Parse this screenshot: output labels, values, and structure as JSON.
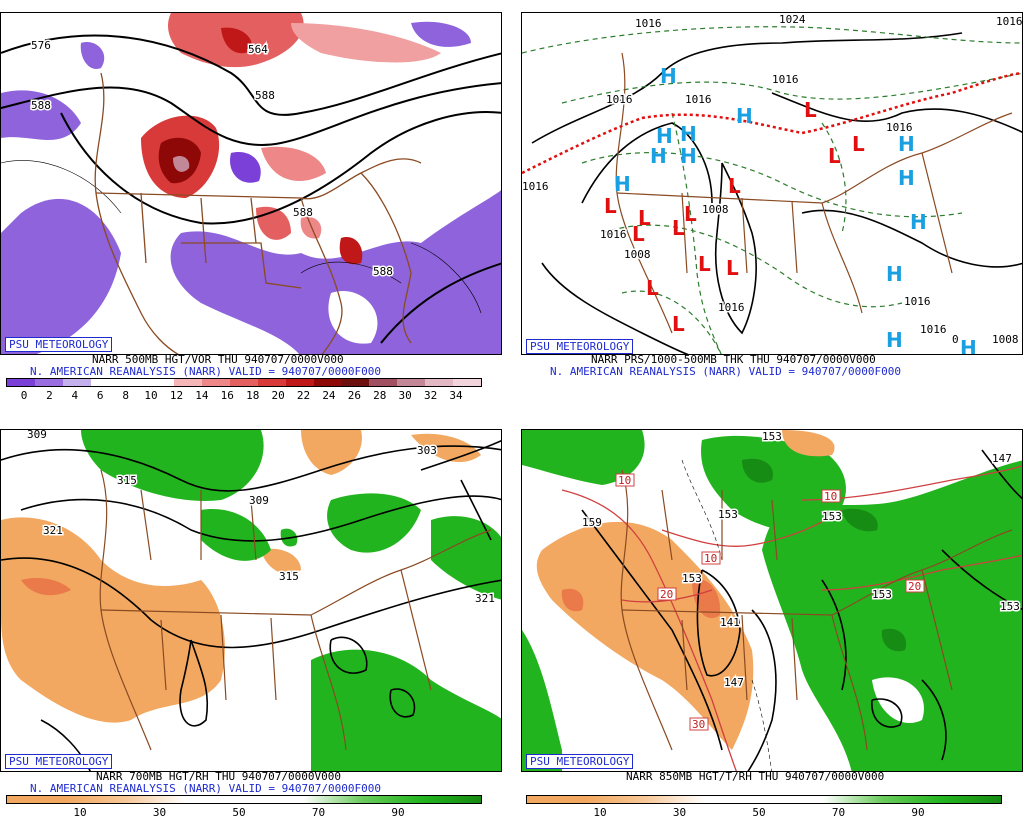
{
  "colors": {
    "vort_scale": [
      "#7a40d8",
      "#9a6ee0",
      "#c3b0ec",
      "#ffffff",
      "#ffffff",
      "#ffffff",
      "#f4b6b6",
      "#ee8888",
      "#e45f5f",
      "#d83a3a",
      "#c01818",
      "#8f0808",
      "#6f1010",
      "#a05060",
      "#c28898",
      "#e2b8c4",
      "#f4d4dc"
    ],
    "rh_dry": "#f2a860",
    "rh_moist": "#22b41e",
    "border": "#8a4a22",
    "badge_blue": "#1f2bd0",
    "high_symbol": "#1aa0e0",
    "low_symbol": "#e01010"
  },
  "panels": {
    "p1": {
      "badge": "PSU METEOROLOGY",
      "caption1": "NARR 500MB HGT/VOR THU 940707/0000V000",
      "caption2": "N. AMERICAN REANALYSIS (NARR) VALID = 940707/0000F000",
      "contour_labels": [
        "576",
        "564",
        "588",
        "588",
        "588",
        "588"
      ],
      "legend_ticks": [
        "0",
        "2",
        "4",
        "6",
        "8",
        "10",
        "12",
        "14",
        "16",
        "18",
        "20",
        "22",
        "24",
        "26",
        "28",
        "30",
        "32",
        "34"
      ]
    },
    "p2": {
      "badge": "PSU METEOROLOGY",
      "caption1": "NARR PRS/1000-500MB THK THU 940707/0000V000",
      "caption2": "N. AMERICAN REANALYSIS (NARR) VALID = 940707/0000F000",
      "contour_labels": [
        "1016",
        "1024",
        "1016",
        "1016",
        "1016",
        "1016",
        "1008",
        "1008",
        "1016",
        "1016",
        "1016",
        "1016",
        "1008",
        "1016",
        "1016",
        "0"
      ],
      "high_symbol": "H",
      "low_symbol": "L"
    },
    "p3": {
      "badge": "PSU METEOROLOGY",
      "caption1": "NARR 700MB HGT/RH THU 940707/0000V000",
      "caption2": "N. AMERICAN REANALYSIS (NARR) VALID = 940707/0000F000",
      "contour_labels": [
        "315",
        "309",
        "321",
        "315",
        "303",
        "321",
        "309"
      ],
      "legend_ticks": [
        "10",
        "30",
        "50",
        "70",
        "90"
      ]
    },
    "p4": {
      "badge": "PSU METEOROLOGY",
      "caption1": "NARR 850MB HGT/T/RH THU 940707/0000V000",
      "contour_labels": [
        "153",
        "159",
        "153",
        "153",
        "153",
        "141",
        "147",
        "147",
        "153",
        "153"
      ],
      "temp_labels": [
        "10",
        "10",
        "10",
        "20",
        "20",
        "30"
      ],
      "legend_ticks": [
        "10",
        "30",
        "50",
        "70",
        "90"
      ]
    }
  }
}
